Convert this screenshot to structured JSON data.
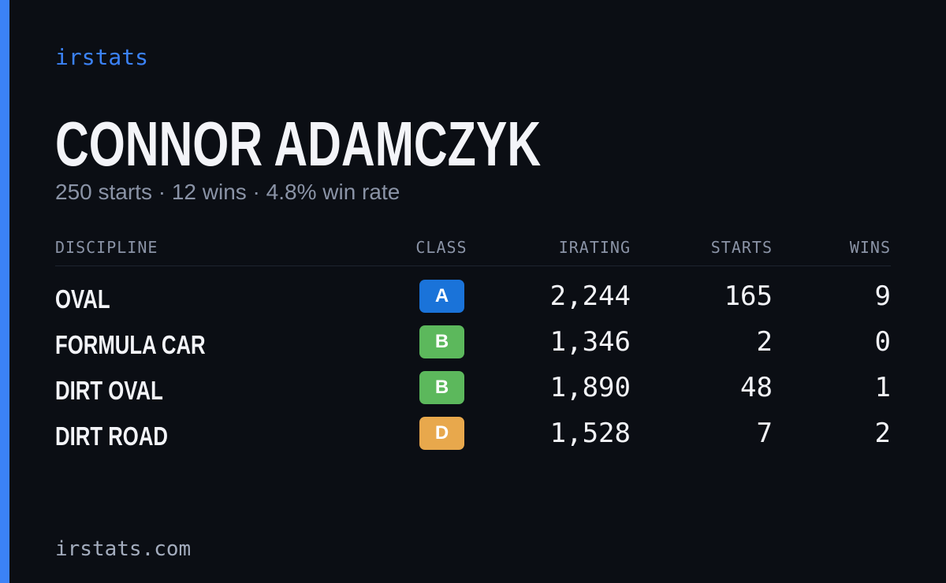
{
  "header": {
    "brand": "irstats",
    "name": "CONNOR ADAMCZYK",
    "subtitle": "250 starts · 12 wins · 4.8% win rate"
  },
  "table": {
    "columns": [
      "DISCIPLINE",
      "CLASS",
      "IRATING",
      "STARTS",
      "WINS"
    ],
    "rows": [
      {
        "discipline": "OVAL",
        "class": "A",
        "class_color": "#1a73d9",
        "irating": "2,244",
        "starts": "165",
        "wins": "9"
      },
      {
        "discipline": "FORMULA CAR",
        "class": "B",
        "class_color": "#5cb85c",
        "irating": "1,346",
        "starts": "2",
        "wins": "0"
      },
      {
        "discipline": "DIRT OVAL",
        "class": "B",
        "class_color": "#5cb85c",
        "irating": "1,890",
        "starts": "48",
        "wins": "1"
      },
      {
        "discipline": "DIRT ROAD",
        "class": "D",
        "class_color": "#e8a84c",
        "irating": "1,528",
        "starts": "7",
        "wins": "2"
      }
    ]
  },
  "footer": {
    "url": "irstats.com"
  }
}
